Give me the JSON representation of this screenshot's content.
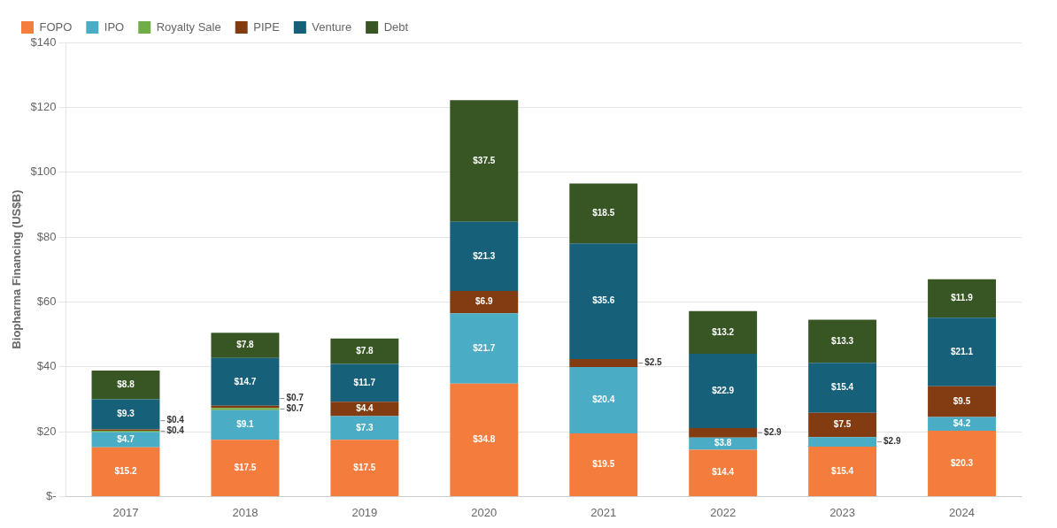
{
  "chart_data": {
    "type": "bar",
    "stacked": true,
    "categories": [
      "2017",
      "2018",
      "2019",
      "2020",
      "2021",
      "2022",
      "2023",
      "2024"
    ],
    "series": [
      {
        "name": "FOPO",
        "color": "#F47C3C",
        "values": [
          15.2,
          17.5,
          17.5,
          34.8,
          19.5,
          14.4,
          15.4,
          20.3
        ],
        "value_labels": [
          "$15.2",
          "$17.5",
          "$17.5",
          "$34.8",
          "$19.5",
          "$14.4",
          "$15.4",
          "$20.3"
        ]
      },
      {
        "name": "IPO",
        "color": "#4BACC6",
        "values": [
          4.7,
          9.1,
          7.3,
          21.7,
          20.4,
          3.8,
          2.9,
          4.2
        ],
        "value_labels": [
          "$4.7",
          "$9.1",
          "$7.3",
          "$21.7",
          "$20.4",
          "$3.8",
          "$2.9",
          "$4.2"
        ]
      },
      {
        "name": "Royalty Sale",
        "color": "#70AD47",
        "values": [
          0.4,
          0.7,
          0.0,
          0.0,
          0.0,
          0.0,
          0.0,
          0.0
        ],
        "value_labels": [
          "$0.4",
          "$0.7",
          null,
          null,
          null,
          null,
          null,
          null
        ]
      },
      {
        "name": "PIPE",
        "color": "#833C11",
        "values": [
          0.4,
          0.7,
          4.4,
          6.9,
          2.5,
          2.9,
          7.5,
          9.5
        ],
        "value_labels": [
          "$0.4",
          "$0.7",
          "$4.4",
          "$6.9",
          "$2.5",
          "$2.9",
          "$7.5",
          "$9.5"
        ]
      },
      {
        "name": "Venture",
        "color": "#17607A",
        "values": [
          9.3,
          14.7,
          11.7,
          21.3,
          35.6,
          22.9,
          15.4,
          21.1
        ],
        "value_labels": [
          "$9.3",
          "$14.7",
          "$11.7",
          "$21.3",
          "$35.6",
          "$22.9",
          "$15.4",
          "$21.1"
        ]
      },
      {
        "name": "Debt",
        "color": "#375623",
        "values": [
          8.8,
          7.8,
          7.8,
          37.5,
          18.5,
          13.2,
          13.3,
          11.9
        ],
        "value_labels": [
          "$8.8",
          "$7.8",
          "$7.8",
          "$37.5",
          "$18.5",
          "$13.2",
          "$13.3",
          "$11.9"
        ]
      }
    ],
    "ylabel": "Biopharma Financing (US$B)",
    "ylim": [
      0,
      140
    ],
    "yticks": [
      {
        "value": 0,
        "label": "$-"
      },
      {
        "value": 20,
        "label": "$20"
      },
      {
        "value": 40,
        "label": "$40"
      },
      {
        "value": 60,
        "label": "$60"
      },
      {
        "value": 80,
        "label": "$80"
      },
      {
        "value": 100,
        "label": "$100"
      },
      {
        "value": 120,
        "label": "$120"
      },
      {
        "value": 140,
        "label": "$140"
      }
    ],
    "grid": true,
    "legend": "upper left",
    "data_labels": true
  }
}
